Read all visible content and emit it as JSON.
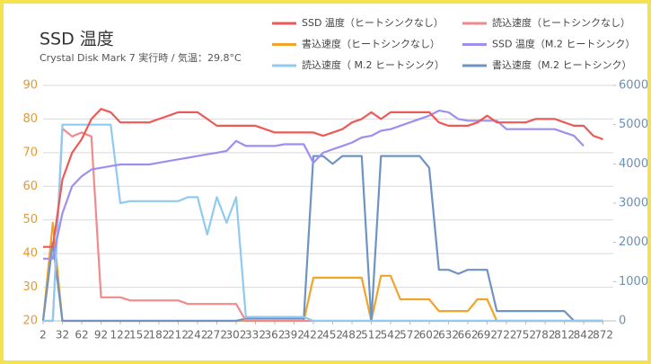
{
  "chart_data": {
    "type": "line",
    "title": "SSD 温度",
    "subtitle": "Crystal Disk Mark 7 実行時 / 気温：29.8°C",
    "x": [
      2,
      17,
      32,
      47,
      62,
      77,
      92,
      107,
      122,
      137,
      152,
      167,
      182,
      197,
      212,
      227,
      242,
      257,
      272,
      287,
      302,
      317,
      332,
      347,
      362,
      377,
      392,
      407,
      422,
      437,
      452,
      467,
      482,
      497,
      512,
      527,
      542,
      557,
      572,
      587,
      602,
      617,
      632,
      647,
      662,
      677,
      692,
      707,
      722,
      737,
      752,
      767,
      782,
      797,
      812,
      827,
      842,
      857,
      872
    ],
    "xlim": [
      2,
      888
    ],
    "xticks": [
      2,
      32,
      62,
      92,
      122,
      152,
      182,
      212,
      242,
      272,
      302,
      332,
      362,
      392,
      422,
      452,
      482,
      512,
      542,
      572,
      602,
      632,
      662,
      692,
      722,
      752,
      782,
      812,
      842,
      872
    ],
    "ylim": [
      20,
      90
    ],
    "yticks": [
      20,
      30,
      40,
      50,
      60,
      70,
      80,
      90
    ],
    "y2lim": [
      0,
      6000
    ],
    "y2ticks": [
      0,
      1000,
      2000,
      3000,
      4000,
      5000,
      6000
    ],
    "grid": true,
    "series": [
      {
        "name": "SSD 温度（ヒートシンクなし）",
        "color": "#ec5a57",
        "values": [
          42,
          42,
          62,
          70,
          74,
          80,
          83,
          82,
          79,
          79,
          79,
          79,
          80,
          81,
          82,
          82,
          82,
          80,
          78,
          78,
          78,
          78,
          78,
          77,
          76,
          76,
          76,
          76,
          76,
          75,
          76,
          77,
          79,
          80,
          82,
          80,
          82,
          82,
          82,
          82,
          82,
          79,
          78,
          78,
          78,
          79,
          81,
          79,
          79,
          79,
          79,
          80,
          80,
          80,
          79,
          78,
          78,
          75,
          74
        ]
      },
      {
        "name": "読込速度（ヒートシンクなし）",
        "color": "#f28a8c",
        "axis": "y2",
        "values": [
          0,
          0,
          4900,
          4700,
          4800,
          4700,
          600,
          600,
          600,
          520,
          520,
          520,
          520,
          520,
          520,
          430,
          430,
          430,
          430,
          430,
          430,
          0,
          0,
          0,
          0,
          0,
          0,
          0,
          0,
          0,
          0,
          0,
          0,
          0,
          0,
          0,
          0,
          0,
          0,
          0,
          0,
          0,
          0,
          0,
          0,
          0,
          0,
          0,
          0,
          0,
          0,
          0,
          0,
          0,
          0,
          0,
          0,
          0,
          0
        ]
      },
      {
        "name": "書込速度（ヒートシンクなし）",
        "color": "#f2a32a",
        "axis": "y2",
        "values": [
          0,
          2500,
          0,
          0,
          0,
          0,
          0,
          0,
          0,
          0,
          0,
          0,
          0,
          0,
          0,
          0,
          0,
          0,
          0,
          0,
          0,
          0,
          0,
          0,
          0,
          0,
          0,
          0,
          1100,
          1100,
          1100,
          1100,
          1100,
          1100,
          0,
          1150,
          1150,
          550,
          550,
          550,
          550,
          250,
          250,
          250,
          250,
          550,
          550,
          0,
          0,
          0,
          0,
          0,
          0,
          0,
          0,
          0,
          0,
          0,
          0
        ]
      },
      {
        "name": "SSD 温度（M.2 ヒートシンク）",
        "color": "#9d8ff0",
        "values": [
          38.5,
          38.5,
          52,
          60,
          63,
          65,
          65.5,
          66,
          66.5,
          66.5,
          66.5,
          66.5,
          67,
          67.5,
          68,
          68.5,
          69,
          69.5,
          70,
          70.5,
          73.5,
          72,
          72,
          72,
          72,
          72.5,
          72.5,
          72.5,
          67,
          70,
          71,
          72,
          73,
          74.5,
          75,
          76.5,
          77,
          78,
          79,
          80,
          81,
          82.5,
          82,
          80,
          79.5,
          79.5,
          79.5,
          79.5,
          77,
          77,
          77,
          77,
          77,
          77,
          76,
          75,
          72,
          null,
          null
        ]
      },
      {
        "name": "読込速度（ M.2 ヒートシンク）",
        "color": "#8fcaf0",
        "axis": "y2",
        "values": [
          0,
          0,
          5000,
          5000,
          5000,
          5000,
          5000,
          5000,
          3000,
          3050,
          3050,
          3050,
          3050,
          3050,
          3050,
          3150,
          3150,
          2200,
          3150,
          2500,
          3150,
          100,
          100,
          100,
          100,
          100,
          100,
          100,
          0,
          0,
          0,
          0,
          0,
          0,
          0,
          0,
          0,
          0,
          0,
          0,
          0,
          0,
          0,
          0,
          0,
          0,
          0,
          0,
          0,
          0,
          0,
          0,
          0,
          0,
          0,
          0,
          0,
          0,
          0
        ]
      },
      {
        "name": "書込速度（M.2 ヒートシンク）",
        "color": "#6f93c2",
        "axis": "y2",
        "values": [
          0,
          2000,
          0,
          0,
          0,
          0,
          0,
          0,
          0,
          0,
          0,
          0,
          0,
          0,
          0,
          0,
          0,
          0,
          0,
          0,
          0,
          60,
          60,
          60,
          60,
          60,
          60,
          60,
          4200,
          4200,
          4000,
          4200,
          4200,
          4200,
          0,
          4200,
          4200,
          4200,
          4200,
          4200,
          3900,
          1300,
          1300,
          1200,
          1300,
          1300,
          1300,
          250,
          250,
          250,
          250,
          250,
          250,
          250,
          250,
          0,
          0,
          0,
          0
        ]
      }
    ]
  }
}
